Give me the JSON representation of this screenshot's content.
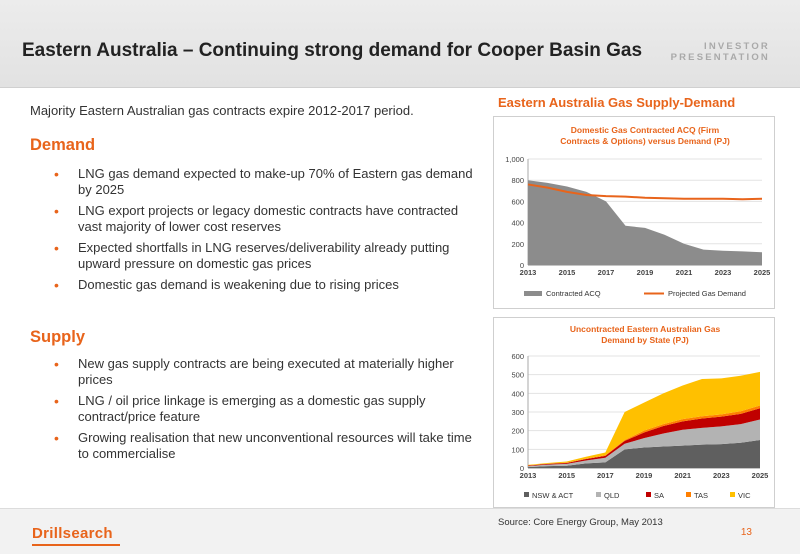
{
  "header": {
    "title": "Eastern Australia – Continuing strong demand for Cooper Basin Gas",
    "investor_line1": "INVESTOR",
    "investor_line2": "PRESENTATION"
  },
  "left": {
    "intro": "Majority Eastern Australian gas contracts expire 2012-2017 period.",
    "demand_heading": "Demand",
    "demand_bullets": [
      "LNG gas demand expected to make-up 70% of Eastern gas demand by 2025",
      "LNG export projects or legacy domestic contracts have contracted vast majority of lower cost reserves",
      "Expected shortfalls in LNG reserves/deliverability already putting upward pressure on domestic gas prices",
      "Domestic gas demand is weakening due to rising prices"
    ],
    "supply_heading": "Supply",
    "supply_bullets": [
      "New gas supply contracts are being executed at materially higher prices",
      "LNG / oil price linkage is emerging as a domestic gas supply contract/price feature",
      "Growing realisation that new unconventional resources will take time to commercialise"
    ]
  },
  "right_title": "Eastern Australia Gas Supply-Demand",
  "footer": {
    "logo": "Drillsearch",
    "source": "Source: Core Energy Group, May 2013",
    "page": "13"
  },
  "colors": {
    "accent": "#e8641b",
    "contracted": "#8c8c8c",
    "nsw": "#5f5f5f",
    "qld": "#b3b3b3",
    "sa": "#c00000",
    "tas": "#ff7f00",
    "vic": "#ffc000"
  },
  "chart_data": [
    {
      "type": "area",
      "title": "Domestic Gas Contracted ACQ (Firm Contracts & Options) versus Demand (PJ)",
      "title_lines": [
        "Domestic Gas Contracted ACQ (Firm",
        "Contracts & Options) versus Demand (PJ)"
      ],
      "x": [
        2013,
        2014,
        2015,
        2016,
        2017,
        2018,
        2019,
        2020,
        2021,
        2022,
        2023,
        2024,
        2025
      ],
      "ylim": [
        0,
        1000
      ],
      "yticks": [
        0,
        200,
        400,
        600,
        800,
        1000
      ],
      "ytick_labels": [
        "0",
        "200",
        "400",
        "600",
        "800",
        "1,000"
      ],
      "xtick_labels": [
        "2013",
        "2015",
        "2017",
        "2019",
        "2021",
        "2023",
        "2025"
      ],
      "series": [
        {
          "name": "Contracted ACQ",
          "kind": "area",
          "values": [
            800,
            775,
            740,
            690,
            600,
            370,
            350,
            285,
            200,
            145,
            135,
            128,
            120
          ]
        },
        {
          "name": "Projected Gas Demand",
          "kind": "line",
          "values": [
            760,
            730,
            690,
            660,
            650,
            645,
            635,
            630,
            625,
            625,
            625,
            620,
            625
          ]
        }
      ],
      "legend_position": "bottom"
    },
    {
      "type": "area",
      "title": "Uncontracted Eastern Australian Gas Demand by State (PJ)",
      "title_lines": [
        "Uncontracted Eastern Australian Gas",
        "Demand by State (PJ)"
      ],
      "stacked": true,
      "x": [
        2013,
        2014,
        2015,
        2016,
        2017,
        2018,
        2019,
        2020,
        2021,
        2022,
        2023,
        2024,
        2025
      ],
      "ylim": [
        0,
        600
      ],
      "yticks": [
        0,
        100,
        200,
        300,
        400,
        500,
        600
      ],
      "ytick_labels": [
        "0",
        "100",
        "200",
        "300",
        "400",
        "500",
        "600"
      ],
      "xtick_labels": [
        "2013",
        "2015",
        "2017",
        "2019",
        "2021",
        "2023",
        "2025"
      ],
      "series": [
        {
          "name": "NSW & ACT",
          "values": [
            5,
            10,
            12,
            25,
            30,
            100,
            110,
            115,
            120,
            125,
            128,
            135,
            150
          ]
        },
        {
          "name": "QLD",
          "values": [
            5,
            8,
            10,
            15,
            25,
            30,
            50,
            70,
            85,
            90,
            95,
            100,
            110
          ]
        },
        {
          "name": "SA",
          "values": [
            3,
            4,
            5,
            8,
            10,
            15,
            30,
            40,
            45,
            50,
            52,
            55,
            60
          ]
        },
        {
          "name": "TAS",
          "values": [
            1,
            1,
            2,
            2,
            3,
            5,
            10,
            10,
            12,
            12,
            12,
            14,
            15
          ]
        },
        {
          "name": "VIC",
          "values": [
            3,
            4,
            6,
            10,
            15,
            150,
            150,
            165,
            180,
            200,
            193,
            190,
            180
          ]
        }
      ],
      "legend_position": "bottom"
    }
  ]
}
